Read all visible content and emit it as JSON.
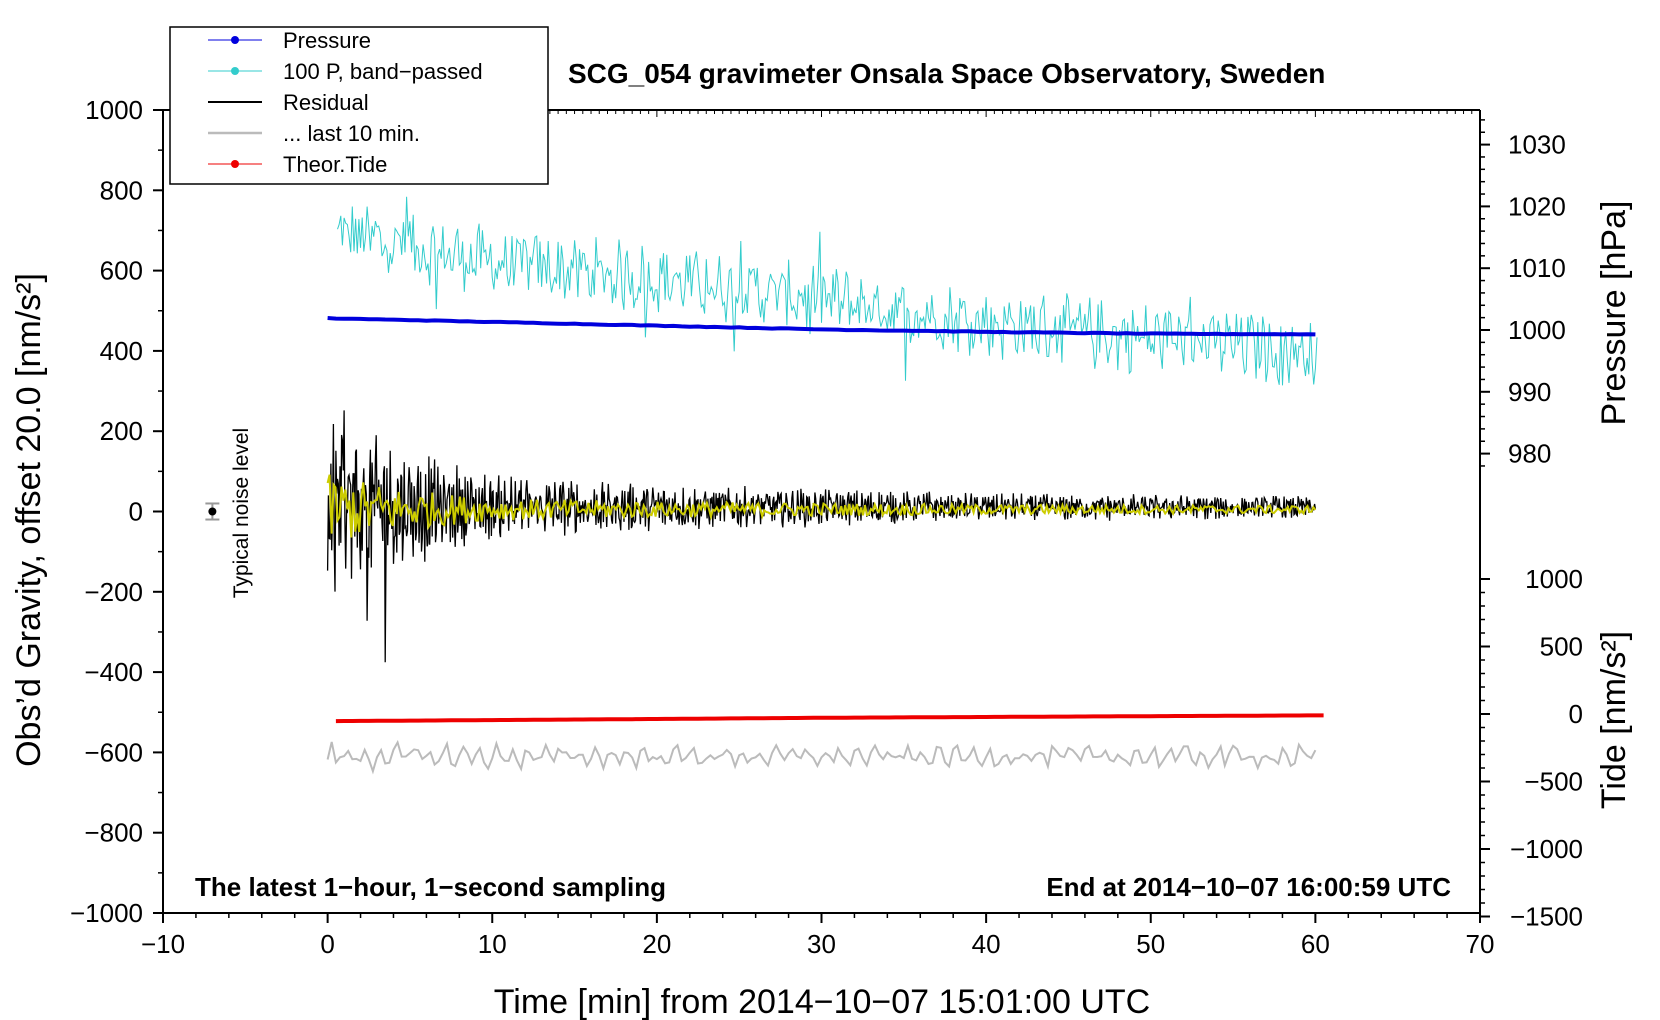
{
  "chart_data": {
    "type": "line",
    "title": "SCG_054 gravimeter Onsala Space Observatory, Sweden",
    "xlabel": "Time [min] from 2014−10−07 15:01:00 UTC",
    "ylabel_left": "Obs’d Gravity, offset 20.0 [nm/s²]",
    "ylabel_pressure": "Pressure [hPa]",
    "ylabel_tide": "Tide [nm/s²]",
    "xlim": [
      -10,
      70
    ],
    "ylim_left": [
      -1000,
      1000
    ],
    "pressure_ticks": [
      980,
      990,
      1000,
      1010,
      1020,
      1030
    ],
    "tide_ticks": [
      -1500,
      -1000,
      -500,
      0,
      500,
      1000
    ],
    "x_tick_labels": [
      "−10",
      "0",
      "10",
      "20",
      "30",
      "40",
      "50",
      "60",
      "70"
    ],
    "y_tick_labels_left": [
      "−1000",
      "−800",
      "−600",
      "−400",
      "−200",
      "0",
      "200",
      "400",
      "600",
      "800",
      "1000"
    ],
    "pressure_tick_labels": [
      "980",
      "990",
      "1000",
      "1010",
      "1020",
      "1030"
    ],
    "tide_tick_labels": [
      "−1500",
      "−1000",
      "−500",
      "0",
      "500",
      "1000"
    ],
    "grid": false,
    "legend_position": "top-left",
    "legend": [
      "Pressure",
      "100 P, band−passed",
      "Residual",
      "... last 10 min.",
      "Theor.Tide"
    ],
    "annotations": {
      "noise_label": "Typical noise level",
      "noise_marker": {
        "x": -7,
        "y": 0,
        "err": 20
      },
      "bottom_left": "The latest 1−hour, 1−second sampling",
      "bottom_right": "End at 2014−10−07 16:00:59 UTC"
    },
    "series": [
      {
        "name": "Pressure",
        "unit": "hPa",
        "x": [
          0,
          10,
          20,
          30,
          40,
          50,
          60
        ],
        "values": [
          1001.9,
          1001.3,
          1000.7,
          1000.1,
          999.7,
          999.4,
          999.3
        ]
      },
      {
        "name": "100 P, band−passed",
        "unit": "nm/s² (left axis)",
        "x": [
          0,
          10,
          20,
          30,
          40,
          50,
          60
        ],
        "values": [
          700,
          620,
          580,
          530,
          470,
          430,
          400
        ]
      },
      {
        "name": "Residual",
        "unit": "nm/s² (left axis)",
        "x": [
          0,
          5,
          10,
          20,
          40,
          60
        ],
        "values": [
          0,
          0,
          0,
          0,
          0,
          0
        ],
        "peak_amplitude": [
          350,
          200,
          110,
          80,
          50,
          40
        ]
      },
      {
        "name": "... last 10 min.",
        "unit": "nm/s² (left axis)",
        "x": [
          0,
          20,
          40,
          60
        ],
        "values": [
          -610,
          -610,
          -610,
          -610
        ],
        "peak_amplitude": [
          40,
          30,
          30,
          35
        ]
      },
      {
        "name": "Theor.Tide",
        "unit": "nm/s² (tide axis)",
        "x": [
          0,
          10,
          20,
          30,
          40,
          50,
          60.5
        ],
        "values": [
          -53,
          -45,
          -37,
          -28,
          -22,
          -16,
          -10
        ]
      }
    ],
    "colors": {
      "pressure": "#0000dd",
      "bandpassed": "#33cccc",
      "residual": "#000000",
      "residual_smoothed": "#cccc00",
      "last10": "#bbbbbb",
      "tide": "#ee0000"
    }
  }
}
